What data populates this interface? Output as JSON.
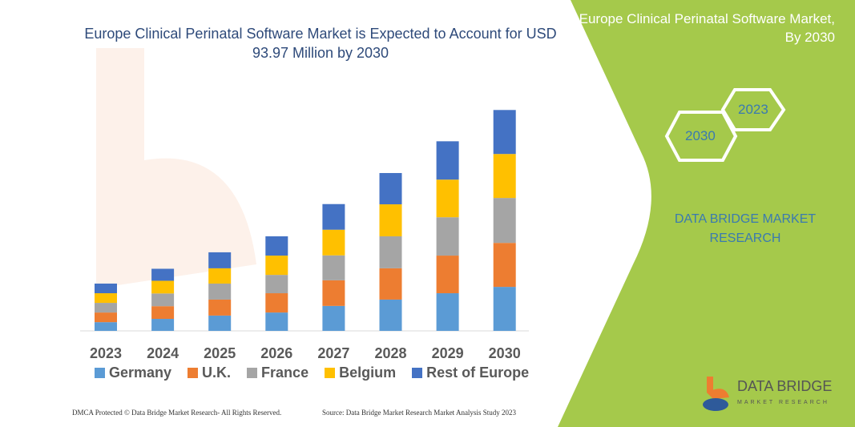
{
  "header": {
    "title": "Europe Clinical Perinatal Software Market is Expected to Account for USD 93.97 Million by 2030"
  },
  "panel": {
    "title": "Europe Clinical Perinatal Software Market, By 2030",
    "hex_years": [
      "2030",
      "2023"
    ],
    "brand_line1": "DATA BRIDGE MARKET",
    "brand_line2": "RESEARCH",
    "logo_text": "DATA BRIDGE",
    "logo_sub": "MARKET RESEARCH",
    "background_color": "#a5c94b"
  },
  "footer": {
    "left": "DMCA Protected © Data Bridge Market Research- All Rights Reserved.",
    "right": "Source: Data Bridge Market Research Market Analysis Study 2023"
  },
  "chart_data": {
    "type": "bar",
    "stacked": true,
    "title": "Europe Clinical Perinatal Software Market is Expected to Account for USD 93.97 Million by 2030",
    "xlabel": "",
    "ylabel": "",
    "grid": false,
    "legend_position": "bottom",
    "categories": [
      "2023",
      "2024",
      "2025",
      "2026",
      "2027",
      "2028",
      "2029",
      "2030"
    ],
    "series": [
      {
        "name": "Germany",
        "color": "#5b9bd5",
        "values": [
          3.7,
          5.1,
          6.5,
          7.8,
          10.6,
          13.3,
          16.0,
          18.7
        ]
      },
      {
        "name": "U.K.",
        "color": "#ed7d31",
        "values": [
          4.1,
          5.4,
          6.8,
          8.2,
          10.9,
          13.3,
          16.0,
          18.7
        ]
      },
      {
        "name": "France",
        "color": "#a5a5a5",
        "values": [
          4.1,
          5.4,
          6.8,
          7.8,
          10.6,
          13.6,
          16.3,
          19.1
        ]
      },
      {
        "name": "Belgium",
        "color": "#ffc000",
        "values": [
          4.1,
          5.4,
          6.5,
          8.2,
          10.9,
          13.6,
          16.0,
          18.7
        ]
      },
      {
        "name": "Rest of Europe",
        "color": "#4472c4",
        "values": [
          4.1,
          5.1,
          6.8,
          8.2,
          10.9,
          13.3,
          16.3,
          18.7
        ]
      }
    ]
  }
}
